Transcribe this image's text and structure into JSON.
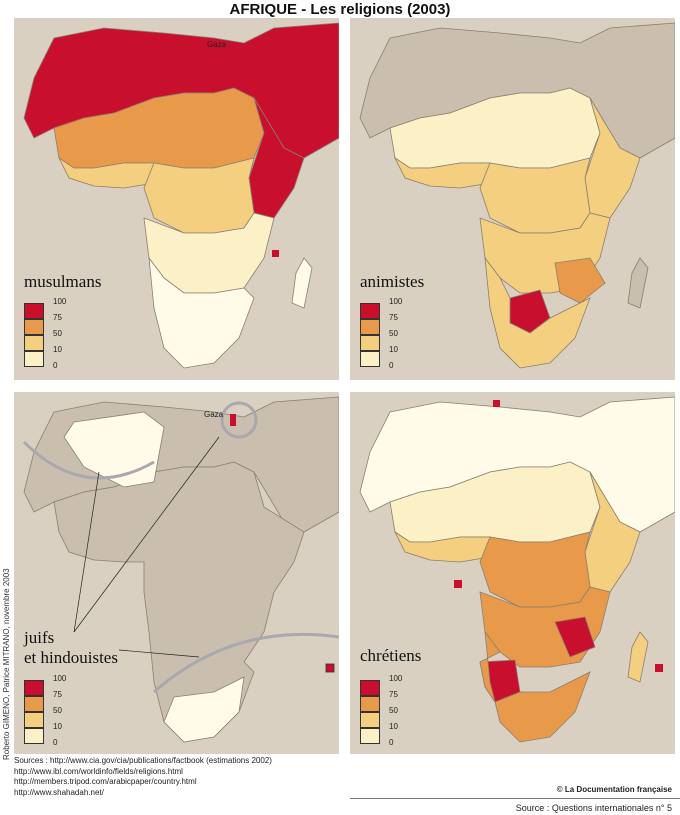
{
  "title": "AFRIQUE - Les religions (2003)",
  "colors": {
    "c100": "#c8102e",
    "c75": "#e89a4a",
    "c50": "#f4cf7f",
    "c10": "#fcf1c6",
    "c0": "#fffbe8",
    "land": "#cabfae",
    "sea": "#d9d0c2",
    "border": "#8a7f70",
    "gray": "#a8a8ae"
  },
  "legend": {
    "levels": [
      "100",
      "75",
      "50",
      "10",
      "0"
    ]
  },
  "panels": [
    {
      "label": "musulmans"
    },
    {
      "label": "animistes"
    },
    {
      "label": "juifs",
      "label2": "et hindouistes",
      "gaza": "Gaza"
    },
    {
      "label": "chrétiens"
    }
  ],
  "gaza_label": "Gaza",
  "credit": "Roberto GIMENO, Patrice MITRANO, novembre 2003",
  "sources": [
    "Sources :  http://www.cia.gov/cia/publications/factbook (estimations 2002)",
    "http://www.ibl.com/worldinfo/fields/religions.html",
    "http://members.tripod.com/arabicpaper/country.html",
    "http://www.shahadah.net/"
  ],
  "copyright": "© La Documentation française",
  "source_note": "Source : Questions internationales n° 5"
}
